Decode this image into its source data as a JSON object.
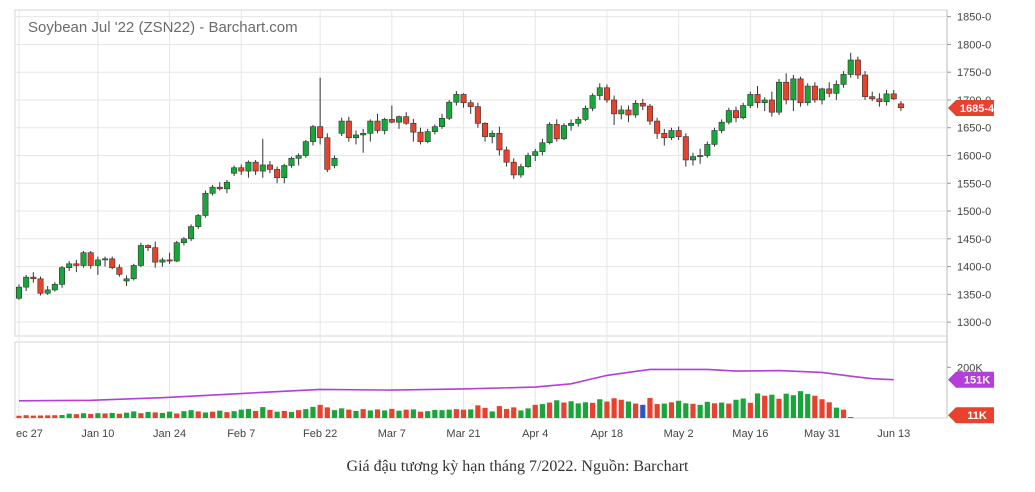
{
  "chart_data": {
    "type": "candlestick",
    "title": "Soybean Jul '22 (ZSN22) - Barchart.com",
    "price_axis": {
      "ylim": [
        1275,
        1862
      ],
      "ticks": [
        "1850-0",
        "1800-0",
        "1750-0",
        "1700-0",
        "1650-0",
        "1600-0",
        "1550-0",
        "1500-0",
        "1450-0",
        "1400-0",
        "1350-0",
        "1300-0"
      ],
      "tick_values": [
        1850,
        1800,
        1750,
        1700,
        1650,
        1600,
        1550,
        1500,
        1450,
        1400,
        1350,
        1300
      ],
      "last_price_label": "1685-4",
      "last_price": 1685.5
    },
    "volume_axis": {
      "ylim": [
        0,
        300000
      ],
      "ticks": [
        "200K"
      ],
      "tick_values": [
        200000
      ],
      "oi_label": "151K",
      "oi_value": 151000,
      "volume_label": "11K",
      "volume_value": 11000
    },
    "x_labels": [
      "ec 27",
      "Jan 10",
      "Jan 24",
      "Feb 7",
      "Feb 22",
      "Mar 7",
      "Mar 21",
      "Apr 4",
      "Apr 18",
      "May 2",
      "May 16",
      "May 31",
      "Jun 13"
    ],
    "x_label_index": [
      0,
      11,
      21,
      31,
      42,
      52,
      62,
      72,
      82,
      92,
      102,
      112,
      122
    ],
    "grid": true,
    "colors": {
      "up": "#1aa53a",
      "down": "#e8412c",
      "volume_special": "#2f55c4",
      "open_interest": "#b33fd8",
      "last_price": "#e8412c",
      "oi_badge": "#b33fd8"
    },
    "candles": [
      [
        1343,
        1368,
        1340,
        1363
      ],
      [
        1363,
        1385,
        1356,
        1381
      ],
      [
        1381,
        1390,
        1371,
        1378
      ],
      [
        1378,
        1382,
        1348,
        1352
      ],
      [
        1352,
        1365,
        1349,
        1358
      ],
      [
        1358,
        1372,
        1355,
        1368
      ],
      [
        1368,
        1401,
        1362,
        1398
      ],
      [
        1398,
        1410,
        1392,
        1405
      ],
      [
        1405,
        1412,
        1390,
        1402
      ],
      [
        1402,
        1428,
        1398,
        1425
      ],
      [
        1425,
        1428,
        1396,
        1402
      ],
      [
        1402,
        1418,
        1385,
        1412
      ],
      [
        1412,
        1418,
        1400,
        1414
      ],
      [
        1414,
        1418,
        1395,
        1398
      ],
      [
        1398,
        1404,
        1382,
        1386
      ],
      [
        1374,
        1384,
        1365,
        1378
      ],
      [
        1378,
        1405,
        1375,
        1402
      ],
      [
        1402,
        1443,
        1399,
        1438
      ],
      [
        1438,
        1440,
        1428,
        1434
      ],
      [
        1434,
        1445,
        1398,
        1408
      ],
      [
        1408,
        1416,
        1400,
        1412
      ],
      [
        1412,
        1425,
        1405,
        1410
      ],
      [
        1410,
        1446,
        1408,
        1443
      ],
      [
        1443,
        1453,
        1438,
        1450
      ],
      [
        1450,
        1476,
        1446,
        1472
      ],
      [
        1472,
        1495,
        1468,
        1492
      ],
      [
        1492,
        1537,
        1488,
        1532
      ],
      [
        1532,
        1547,
        1528,
        1543
      ],
      [
        1543,
        1552,
        1537,
        1540
      ],
      [
        1540,
        1556,
        1532,
        1552
      ],
      [
        1568,
        1582,
        1563,
        1578
      ],
      [
        1578,
        1584,
        1565,
        1572
      ],
      [
        1572,
        1591,
        1560,
        1588
      ],
      [
        1588,
        1592,
        1565,
        1572
      ],
      [
        1572,
        1630,
        1560,
        1583
      ],
      [
        1583,
        1590,
        1568,
        1575
      ],
      [
        1575,
        1580,
        1550,
        1560
      ],
      [
        1560,
        1585,
        1550,
        1582
      ],
      [
        1582,
        1598,
        1578,
        1595
      ],
      [
        1595,
        1604,
        1582,
        1600
      ],
      [
        1600,
        1628,
        1596,
        1625
      ],
      [
        1625,
        1655,
        1618,
        1652
      ],
      [
        1652,
        1740,
        1620,
        1632
      ],
      [
        1632,
        1640,
        1570,
        1575
      ],
      [
        1582,
        1600,
        1577,
        1595
      ],
      [
        1640,
        1668,
        1635,
        1662
      ],
      [
        1662,
        1670,
        1625,
        1632
      ],
      [
        1632,
        1645,
        1620,
        1637
      ],
      [
        1637,
        1648,
        1605,
        1640
      ],
      [
        1640,
        1665,
        1625,
        1662
      ],
      [
        1662,
        1675,
        1640,
        1645
      ],
      [
        1645,
        1668,
        1638,
        1665
      ],
      [
        1665,
        1690,
        1658,
        1660
      ],
      [
        1660,
        1672,
        1648,
        1670
      ],
      [
        1670,
        1678,
        1655,
        1658
      ],
      [
        1658,
        1666,
        1625,
        1642
      ],
      [
        1642,
        1650,
        1620,
        1625
      ],
      [
        1625,
        1648,
        1622,
        1643
      ],
      [
        1643,
        1656,
        1638,
        1652
      ],
      [
        1652,
        1675,
        1648,
        1667
      ],
      [
        1667,
        1700,
        1664,
        1696
      ],
      [
        1696,
        1716,
        1690,
        1710
      ],
      [
        1710,
        1712,
        1686,
        1695
      ],
      [
        1695,
        1700,
        1675,
        1688
      ],
      [
        1688,
        1695,
        1650,
        1658
      ],
      [
        1658,
        1660,
        1625,
        1634
      ],
      [
        1634,
        1645,
        1622,
        1640
      ],
      [
        1640,
        1652,
        1600,
        1610
      ],
      [
        1610,
        1616,
        1580,
        1588
      ],
      [
        1588,
        1595,
        1558,
        1565
      ],
      [
        1565,
        1585,
        1560,
        1580
      ],
      [
        1580,
        1605,
        1578,
        1600
      ],
      [
        1600,
        1612,
        1590,
        1607
      ],
      [
        1607,
        1630,
        1600,
        1623
      ],
      [
        1623,
        1660,
        1620,
        1656
      ],
      [
        1656,
        1665,
        1625,
        1630
      ],
      [
        1630,
        1658,
        1628,
        1654
      ],
      [
        1654,
        1665,
        1645,
        1658
      ],
      [
        1658,
        1670,
        1652,
        1665
      ],
      [
        1665,
        1690,
        1662,
        1685
      ],
      [
        1685,
        1712,
        1680,
        1708
      ],
      [
        1708,
        1730,
        1700,
        1722
      ],
      [
        1722,
        1728,
        1695,
        1700
      ],
      [
        1700,
        1708,
        1655,
        1675
      ],
      [
        1675,
        1690,
        1665,
        1682
      ],
      [
        1682,
        1690,
        1660,
        1673
      ],
      [
        1673,
        1700,
        1668,
        1694
      ],
      [
        1694,
        1702,
        1682,
        1689
      ],
      [
        1689,
        1693,
        1655,
        1662
      ],
      [
        1662,
        1668,
        1630,
        1640
      ],
      [
        1640,
        1648,
        1618,
        1632
      ],
      [
        1632,
        1650,
        1628,
        1645
      ],
      [
        1645,
        1652,
        1628,
        1634
      ],
      [
        1634,
        1640,
        1580,
        1592
      ],
      [
        1592,
        1605,
        1582,
        1598
      ],
      [
        1598,
        1612,
        1585,
        1600
      ],
      [
        1600,
        1625,
        1596,
        1620
      ],
      [
        1620,
        1650,
        1616,
        1645
      ],
      [
        1645,
        1665,
        1640,
        1660
      ],
      [
        1660,
        1686,
        1656,
        1681
      ],
      [
        1681,
        1688,
        1660,
        1668
      ],
      [
        1668,
        1695,
        1665,
        1690
      ],
      [
        1690,
        1715,
        1685,
        1710
      ],
      [
        1710,
        1725,
        1686,
        1695
      ],
      [
        1695,
        1705,
        1680,
        1700
      ],
      [
        1700,
        1715,
        1670,
        1678
      ],
      [
        1678,
        1738,
        1673,
        1732
      ],
      [
        1732,
        1748,
        1692,
        1700
      ],
      [
        1700,
        1745,
        1680,
        1738
      ],
      [
        1738,
        1742,
        1688,
        1695
      ],
      [
        1695,
        1730,
        1690,
        1725
      ],
      [
        1725,
        1732,
        1695,
        1700
      ],
      [
        1700,
        1722,
        1692,
        1720
      ],
      [
        1720,
        1732,
        1705,
        1712
      ],
      [
        1712,
        1735,
        1700,
        1728
      ],
      [
        1728,
        1752,
        1722,
        1746
      ],
      [
        1746,
        1785,
        1740,
        1772
      ],
      [
        1772,
        1778,
        1738,
        1745
      ],
      [
        1745,
        1752,
        1700,
        1706
      ],
      [
        1706,
        1715,
        1698,
        1702
      ],
      [
        1702,
        1712,
        1688,
        1697
      ],
      [
        1697,
        1718,
        1690,
        1711
      ],
      [
        1711,
        1718,
        1700,
        1702
      ],
      [
        1693,
        1698,
        1680,
        1686
      ]
    ],
    "volume": [
      [
        9000,
        0
      ],
      [
        11000,
        0
      ],
      [
        9500,
        0
      ],
      [
        10000,
        0
      ],
      [
        10500,
        0
      ],
      [
        11000,
        0
      ],
      [
        12000,
        1
      ],
      [
        17000,
        1
      ],
      [
        15000,
        0
      ],
      [
        19000,
        1
      ],
      [
        16000,
        0
      ],
      [
        19000,
        1
      ],
      [
        18000,
        0
      ],
      [
        20000,
        1
      ],
      [
        17000,
        0
      ],
      [
        21000,
        1
      ],
      [
        26000,
        1
      ],
      [
        19000,
        0
      ],
      [
        24000,
        1
      ],
      [
        22000,
        0
      ],
      [
        20000,
        1
      ],
      [
        25000,
        1
      ],
      [
        18000,
        0
      ],
      [
        27000,
        1
      ],
      [
        31000,
        1
      ],
      [
        26000,
        0
      ],
      [
        22000,
        1
      ],
      [
        25000,
        0
      ],
      [
        29000,
        1
      ],
      [
        23000,
        0
      ],
      [
        27000,
        1
      ],
      [
        33000,
        1
      ],
      [
        36000,
        1
      ],
      [
        28000,
        0
      ],
      [
        43000,
        1
      ],
      [
        32000,
        0
      ],
      [
        25000,
        1
      ],
      [
        28000,
        0
      ],
      [
        24000,
        1
      ],
      [
        31000,
        0
      ],
      [
        35000,
        1
      ],
      [
        44000,
        1
      ],
      [
        52000,
        0
      ],
      [
        42000,
        0
      ],
      [
        31000,
        1
      ],
      [
        38000,
        1
      ],
      [
        33000,
        0
      ],
      [
        28000,
        1
      ],
      [
        35000,
        0
      ],
      [
        30000,
        1
      ],
      [
        34000,
        0
      ],
      [
        30000,
        1
      ],
      [
        36000,
        0
      ],
      [
        29000,
        1
      ],
      [
        33000,
        0
      ],
      [
        34000,
        1
      ],
      [
        25000,
        0
      ],
      [
        27000,
        1
      ],
      [
        32000,
        1
      ],
      [
        31000,
        1
      ],
      [
        33000,
        1
      ],
      [
        35000,
        0
      ],
      [
        33000,
        0
      ],
      [
        34000,
        1
      ],
      [
        50000,
        0
      ],
      [
        40000,
        0
      ],
      [
        26000,
        1
      ],
      [
        47000,
        0
      ],
      [
        36000,
        0
      ],
      [
        42000,
        0
      ],
      [
        30000,
        1
      ],
      [
        38000,
        1
      ],
      [
        52000,
        0
      ],
      [
        55000,
        1
      ],
      [
        61000,
        0
      ],
      [
        70000,
        1
      ],
      [
        61000,
        0
      ],
      [
        66000,
        1
      ],
      [
        58000,
        1
      ],
      [
        62000,
        1
      ],
      [
        60000,
        0
      ],
      [
        74000,
        1
      ],
      [
        65000,
        0
      ],
      [
        78000,
        0
      ],
      [
        72000,
        0
      ],
      [
        65000,
        1
      ],
      [
        57000,
        0
      ],
      [
        52000,
        2
      ],
      [
        79000,
        0
      ],
      [
        55000,
        0
      ],
      [
        57000,
        1
      ],
      [
        62000,
        0
      ],
      [
        68000,
        1
      ],
      [
        58000,
        1
      ],
      [
        56000,
        0
      ],
      [
        52000,
        1
      ],
      [
        64000,
        1
      ],
      [
        58000,
        0
      ],
      [
        61000,
        1
      ],
      [
        57000,
        0
      ],
      [
        72000,
        1
      ],
      [
        77000,
        1
      ],
      [
        60000,
        0
      ],
      [
        97000,
        1
      ],
      [
        88000,
        0
      ],
      [
        92000,
        1
      ],
      [
        76000,
        0
      ],
      [
        96000,
        1
      ],
      [
        90000,
        1
      ],
      [
        106000,
        1
      ],
      [
        95000,
        1
      ],
      [
        88000,
        0
      ],
      [
        74000,
        0
      ],
      [
        62000,
        0
      ],
      [
        41000,
        1
      ],
      [
        33000,
        0
      ],
      [
        4000,
        0
      ]
    ],
    "open_interest": [
      [
        0,
        68000
      ],
      [
        10,
        70000
      ],
      [
        20,
        80000
      ],
      [
        30,
        95000
      ],
      [
        42,
        113000
      ],
      [
        52,
        110000
      ],
      [
        62,
        115000
      ],
      [
        72,
        122000
      ],
      [
        77,
        135000
      ],
      [
        82,
        168000
      ],
      [
        88,
        192000
      ],
      [
        96,
        192000
      ],
      [
        100,
        185000
      ],
      [
        106,
        187000
      ],
      [
        112,
        180000
      ],
      [
        116,
        165000
      ],
      [
        119,
        155000
      ],
      [
        122,
        151000
      ]
    ]
  },
  "caption": "Giá đậu tương kỳ hạn tháng 7/2022. Nguồn: Barchart"
}
